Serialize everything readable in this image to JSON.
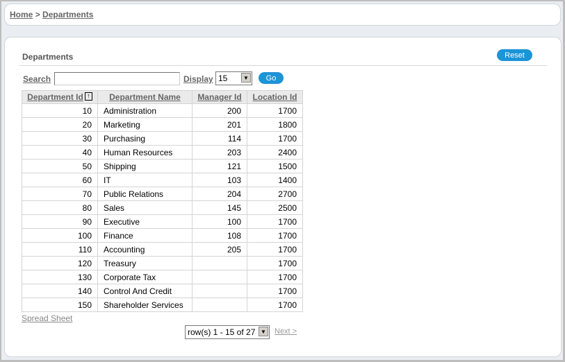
{
  "breadcrumb": {
    "home": "Home",
    "separator": ">",
    "current": "Departments"
  },
  "region": {
    "title": "Departments",
    "reset_label": "Reset"
  },
  "search": {
    "label": "Search",
    "value": "",
    "display_label": "Display",
    "display_value": "15",
    "go_label": "Go"
  },
  "table": {
    "columns": [
      "Department Id",
      "Department Name",
      "Manager Id",
      "Location Id"
    ],
    "sort_icon": "sort-ascending-icon",
    "rows": [
      [
        "10",
        "Administration",
        "200",
        "1700"
      ],
      [
        "20",
        "Marketing",
        "201",
        "1800"
      ],
      [
        "30",
        "Purchasing",
        "114",
        "1700"
      ],
      [
        "40",
        "Human Resources",
        "203",
        "2400"
      ],
      [
        "50",
        "Shipping",
        "121",
        "1500"
      ],
      [
        "60",
        "IT",
        "103",
        "1400"
      ],
      [
        "70",
        "Public Relations",
        "204",
        "2700"
      ],
      [
        "80",
        "Sales",
        "145",
        "2500"
      ],
      [
        "90",
        "Executive",
        "100",
        "1700"
      ],
      [
        "100",
        "Finance",
        "108",
        "1700"
      ],
      [
        "110",
        "Accounting",
        "205",
        "1700"
      ],
      [
        "120",
        "Treasury",
        "",
        "1700"
      ],
      [
        "130",
        "Corporate Tax",
        "",
        "1700"
      ],
      [
        "140",
        "Control And Credit",
        "",
        "1700"
      ],
      [
        "150",
        "Shareholder Services",
        "",
        "1700"
      ]
    ]
  },
  "footer": {
    "spreadsheet": "Spread Sheet",
    "pagination": "row(s) 1 - 15 of 27",
    "next": "Next >"
  },
  "colors": {
    "accent": "#1c94d8",
    "link": "#666666"
  }
}
